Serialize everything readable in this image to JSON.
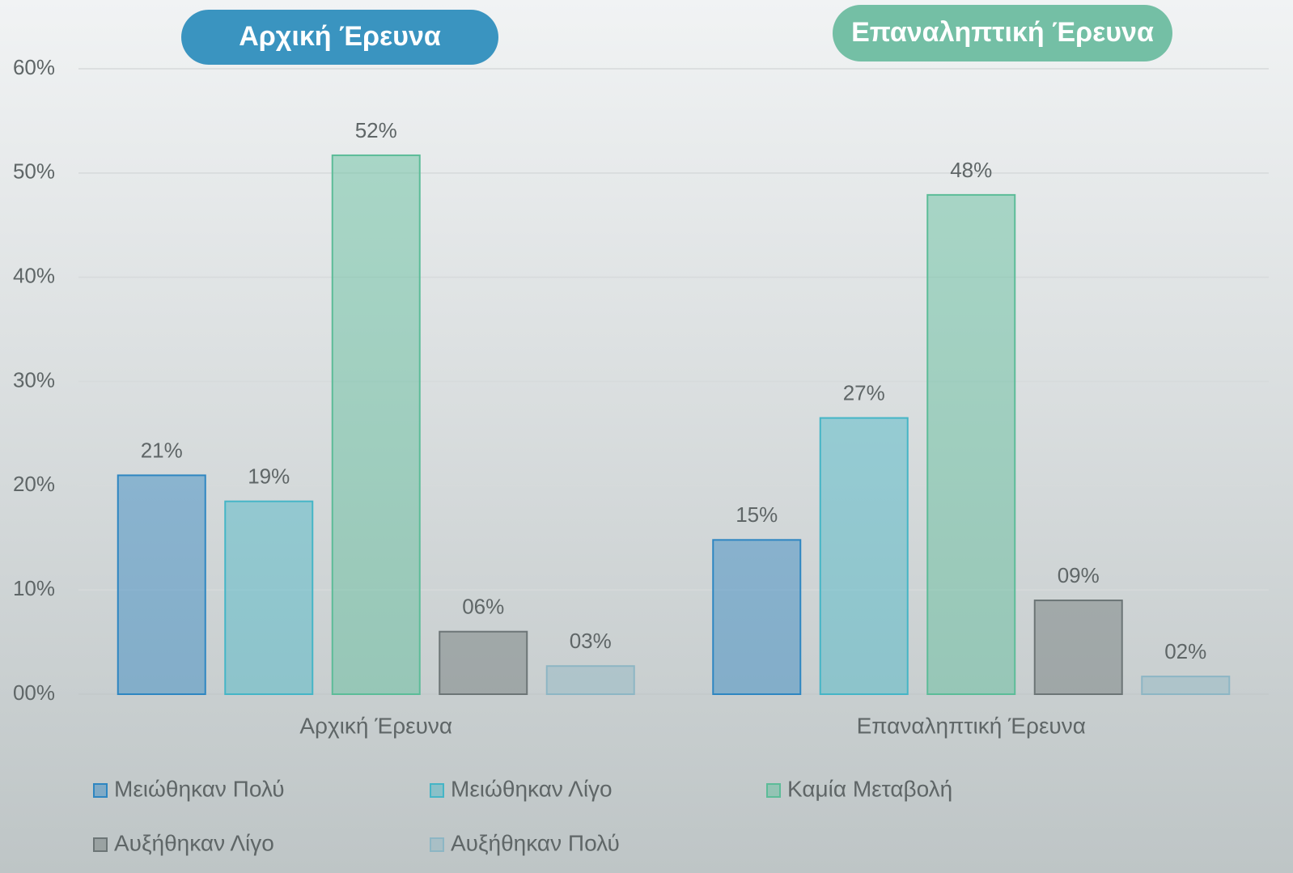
{
  "chart_data": {
    "type": "bar",
    "annotations": [
      "Αρχική Έρευνα",
      "Επαναληπτική Έρευνα"
    ],
    "categories": [
      "Αρχική Έρευνα",
      "Επαναληπτική Έρευνα"
    ],
    "series": [
      {
        "name": "Μειώθηκαν Πολύ",
        "color": "#2e86c1",
        "values": [
          21.0,
          14.8
        ],
        "value_labels": [
          "21%",
          "15%"
        ]
      },
      {
        "name": "Μειώθηκαν Λίγο",
        "color": "#45b5c6",
        "values": [
          18.5,
          26.5
        ],
        "value_labels": [
          "19%",
          "27%"
        ]
      },
      {
        "name": "Καμία Μεταβολή",
        "color": "#5cbc98",
        "values": [
          51.7,
          47.9
        ],
        "value_labels": [
          "52%",
          "48%"
        ]
      },
      {
        "name": "Αυξήθηκαν Λίγο",
        "color": "#6c7576",
        "values": [
          6.0,
          9.0
        ],
        "value_labels": [
          "06%",
          "09%"
        ]
      },
      {
        "name": "Αυξήθηκαν Πολύ",
        "color": "#8db6c4",
        "values": [
          2.7,
          1.7
        ],
        "value_labels": [
          "03%",
          "02%"
        ]
      }
    ],
    "ylim": [
      0,
      60
    ],
    "yticks": [
      {
        "value": 0,
        "label": "00%"
      },
      {
        "value": 10,
        "label": "10%"
      },
      {
        "value": 20,
        "label": "20%"
      },
      {
        "value": 30,
        "label": "30%"
      },
      {
        "value": 40,
        "label": "40%"
      },
      {
        "value": 50,
        "label": "50%"
      },
      {
        "value": 60,
        "label": "60%"
      }
    ],
    "grid": true
  }
}
